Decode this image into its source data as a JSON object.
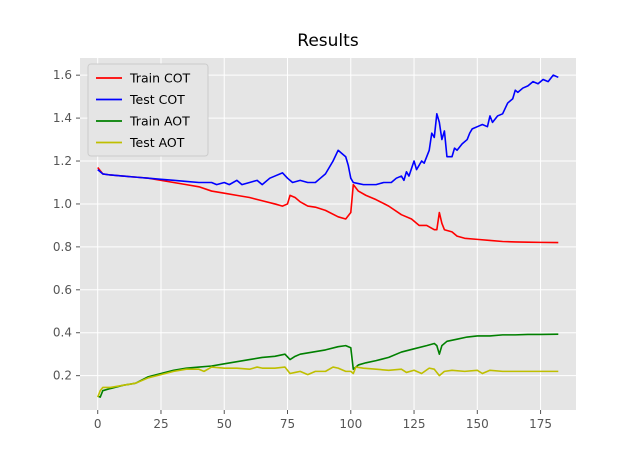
{
  "chart_data": {
    "type": "line",
    "title": "Results",
    "xlabel": "",
    "ylabel": "",
    "xlim": [
      -7,
      189
    ],
    "ylim": [
      0.04,
      1.68
    ],
    "xticks": [
      0,
      25,
      50,
      75,
      100,
      125,
      150,
      175
    ],
    "yticks": [
      0.2,
      0.4,
      0.6,
      0.8,
      1.0,
      1.2,
      1.4,
      1.6
    ],
    "xtick_labels": [
      "0",
      "25",
      "50",
      "75",
      "100",
      "125",
      "150",
      "175"
    ],
    "ytick_labels": [
      "0.2",
      "0.4",
      "0.6",
      "0.8",
      "1.0",
      "1.2",
      "1.4",
      "1.6"
    ],
    "grid": true,
    "legend_position": "top-left",
    "background": "#e5e5e5",
    "series": [
      {
        "name": "Train COT",
        "color": "#ff0000",
        "points": [
          [
            0,
            1.17
          ],
          [
            2,
            1.14
          ],
          [
            5,
            1.135
          ],
          [
            10,
            1.13
          ],
          [
            15,
            1.125
          ],
          [
            20,
            1.12
          ],
          [
            25,
            1.11
          ],
          [
            30,
            1.1
          ],
          [
            35,
            1.09
          ],
          [
            40,
            1.08
          ],
          [
            45,
            1.06
          ],
          [
            50,
            1.05
          ],
          [
            55,
            1.04
          ],
          [
            60,
            1.03
          ],
          [
            65,
            1.015
          ],
          [
            70,
            1.0
          ],
          [
            73,
            0.99
          ],
          [
            75,
            1.0
          ],
          [
            76,
            1.04
          ],
          [
            78,
            1.03
          ],
          [
            80,
            1.01
          ],
          [
            83,
            0.99
          ],
          [
            86,
            0.985
          ],
          [
            90,
            0.97
          ],
          [
            95,
            0.94
          ],
          [
            98,
            0.93
          ],
          [
            100,
            0.96
          ],
          [
            101,
            1.09
          ],
          [
            103,
            1.06
          ],
          [
            106,
            1.04
          ],
          [
            110,
            1.02
          ],
          [
            115,
            0.99
          ],
          [
            120,
            0.95
          ],
          [
            124,
            0.93
          ],
          [
            127,
            0.9
          ],
          [
            130,
            0.9
          ],
          [
            133,
            0.88
          ],
          [
            134,
            0.88
          ],
          [
            135,
            0.96
          ],
          [
            136,
            0.91
          ],
          [
            137,
            0.88
          ],
          [
            140,
            0.87
          ],
          [
            142,
            0.85
          ],
          [
            145,
            0.84
          ],
          [
            150,
            0.835
          ],
          [
            155,
            0.83
          ],
          [
            160,
            0.825
          ],
          [
            165,
            0.823
          ],
          [
            170,
            0.822
          ],
          [
            175,
            0.821
          ],
          [
            182,
            0.82
          ]
        ]
      },
      {
        "name": "Test COT",
        "color": "#0000ff",
        "points": [
          [
            0,
            1.16
          ],
          [
            2,
            1.14
          ],
          [
            5,
            1.135
          ],
          [
            10,
            1.13
          ],
          [
            15,
            1.125
          ],
          [
            20,
            1.12
          ],
          [
            25,
            1.115
          ],
          [
            30,
            1.11
          ],
          [
            35,
            1.105
          ],
          [
            40,
            1.1
          ],
          [
            45,
            1.1
          ],
          [
            47,
            1.09
          ],
          [
            50,
            1.1
          ],
          [
            52,
            1.09
          ],
          [
            55,
            1.11
          ],
          [
            57,
            1.09
          ],
          [
            60,
            1.1
          ],
          [
            63,
            1.11
          ],
          [
            65,
            1.09
          ],
          [
            68,
            1.12
          ],
          [
            70,
            1.13
          ],
          [
            73,
            1.145
          ],
          [
            75,
            1.12
          ],
          [
            77,
            1.1
          ],
          [
            80,
            1.11
          ],
          [
            83,
            1.1
          ],
          [
            86,
            1.1
          ],
          [
            88,
            1.12
          ],
          [
            90,
            1.14
          ],
          [
            93,
            1.2
          ],
          [
            95,
            1.25
          ],
          [
            97,
            1.23
          ],
          [
            98,
            1.22
          ],
          [
            99,
            1.18
          ],
          [
            100,
            1.12
          ],
          [
            101,
            1.1
          ],
          [
            103,
            1.095
          ],
          [
            105,
            1.09
          ],
          [
            108,
            1.09
          ],
          [
            110,
            1.09
          ],
          [
            113,
            1.1
          ],
          [
            116,
            1.1
          ],
          [
            118,
            1.12
          ],
          [
            120,
            1.13
          ],
          [
            121,
            1.11
          ],
          [
            122,
            1.15
          ],
          [
            123,
            1.13
          ],
          [
            125,
            1.2
          ],
          [
            126,
            1.16
          ],
          [
            128,
            1.2
          ],
          [
            129,
            1.19
          ],
          [
            131,
            1.25
          ],
          [
            132,
            1.33
          ],
          [
            133,
            1.31
          ],
          [
            134,
            1.42
          ],
          [
            135,
            1.38
          ],
          [
            136,
            1.3
          ],
          [
            137,
            1.34
          ],
          [
            138,
            1.22
          ],
          [
            140,
            1.22
          ],
          [
            141,
            1.26
          ],
          [
            142,
            1.25
          ],
          [
            144,
            1.28
          ],
          [
            146,
            1.3
          ],
          [
            147,
            1.33
          ],
          [
            148,
            1.35
          ],
          [
            150,
            1.36
          ],
          [
            152,
            1.37
          ],
          [
            154,
            1.36
          ],
          [
            155,
            1.41
          ],
          [
            156,
            1.38
          ],
          [
            158,
            1.41
          ],
          [
            160,
            1.42
          ],
          [
            162,
            1.47
          ],
          [
            164,
            1.49
          ],
          [
            165,
            1.53
          ],
          [
            166,
            1.52
          ],
          [
            168,
            1.54
          ],
          [
            170,
            1.55
          ],
          [
            172,
            1.57
          ],
          [
            174,
            1.56
          ],
          [
            176,
            1.58
          ],
          [
            178,
            1.57
          ],
          [
            180,
            1.6
          ],
          [
            182,
            1.59
          ]
        ]
      },
      {
        "name": "Train AOT",
        "color": "#008000",
        "points": [
          [
            0,
            0.105
          ],
          [
            1,
            0.1
          ],
          [
            2,
            0.13
          ],
          [
            5,
            0.14
          ],
          [
            10,
            0.155
          ],
          [
            15,
            0.165
          ],
          [
            20,
            0.195
          ],
          [
            25,
            0.21
          ],
          [
            30,
            0.225
          ],
          [
            35,
            0.235
          ],
          [
            40,
            0.24
          ],
          [
            45,
            0.245
          ],
          [
            50,
            0.255
          ],
          [
            55,
            0.265
          ],
          [
            60,
            0.275
          ],
          [
            65,
            0.285
          ],
          [
            70,
            0.29
          ],
          [
            74,
            0.3
          ],
          [
            76,
            0.275
          ],
          [
            78,
            0.29
          ],
          [
            80,
            0.3
          ],
          [
            85,
            0.31
          ],
          [
            90,
            0.32
          ],
          [
            95,
            0.335
          ],
          [
            98,
            0.34
          ],
          [
            100,
            0.33
          ],
          [
            101,
            0.23
          ],
          [
            103,
            0.25
          ],
          [
            106,
            0.26
          ],
          [
            110,
            0.27
          ],
          [
            115,
            0.285
          ],
          [
            120,
            0.31
          ],
          [
            125,
            0.325
          ],
          [
            130,
            0.34
          ],
          [
            133,
            0.35
          ],
          [
            134,
            0.34
          ],
          [
            135,
            0.3
          ],
          [
            136,
            0.34
          ],
          [
            138,
            0.36
          ],
          [
            142,
            0.37
          ],
          [
            146,
            0.38
          ],
          [
            150,
            0.385
          ],
          [
            155,
            0.385
          ],
          [
            160,
            0.39
          ],
          [
            165,
            0.39
          ],
          [
            170,
            0.392
          ],
          [
            175,
            0.392
          ],
          [
            182,
            0.393
          ]
        ]
      },
      {
        "name": "Test AOT",
        "color": "#bfbf00",
        "points": [
          [
            0,
            0.1
          ],
          [
            1,
            0.13
          ],
          [
            2,
            0.145
          ],
          [
            5,
            0.145
          ],
          [
            10,
            0.155
          ],
          [
            15,
            0.165
          ],
          [
            20,
            0.19
          ],
          [
            25,
            0.205
          ],
          [
            30,
            0.22
          ],
          [
            35,
            0.23
          ],
          [
            40,
            0.23
          ],
          [
            42,
            0.22
          ],
          [
            45,
            0.24
          ],
          [
            50,
            0.235
          ],
          [
            55,
            0.235
          ],
          [
            60,
            0.23
          ],
          [
            63,
            0.24
          ],
          [
            65,
            0.235
          ],
          [
            70,
            0.235
          ],
          [
            74,
            0.24
          ],
          [
            76,
            0.21
          ],
          [
            78,
            0.215
          ],
          [
            80,
            0.22
          ],
          [
            83,
            0.205
          ],
          [
            86,
            0.22
          ],
          [
            90,
            0.22
          ],
          [
            93,
            0.24
          ],
          [
            95,
            0.235
          ],
          [
            98,
            0.22
          ],
          [
            100,
            0.22
          ],
          [
            101,
            0.21
          ],
          [
            102,
            0.24
          ],
          [
            105,
            0.235
          ],
          [
            110,
            0.23
          ],
          [
            115,
            0.225
          ],
          [
            120,
            0.23
          ],
          [
            122,
            0.215
          ],
          [
            125,
            0.225
          ],
          [
            128,
            0.21
          ],
          [
            131,
            0.235
          ],
          [
            133,
            0.23
          ],
          [
            135,
            0.2
          ],
          [
            137,
            0.22
          ],
          [
            140,
            0.225
          ],
          [
            145,
            0.22
          ],
          [
            150,
            0.225
          ],
          [
            152,
            0.21
          ],
          [
            155,
            0.225
          ],
          [
            160,
            0.22
          ],
          [
            165,
            0.22
          ],
          [
            170,
            0.22
          ],
          [
            175,
            0.22
          ],
          [
            182,
            0.22
          ]
        ]
      }
    ]
  }
}
